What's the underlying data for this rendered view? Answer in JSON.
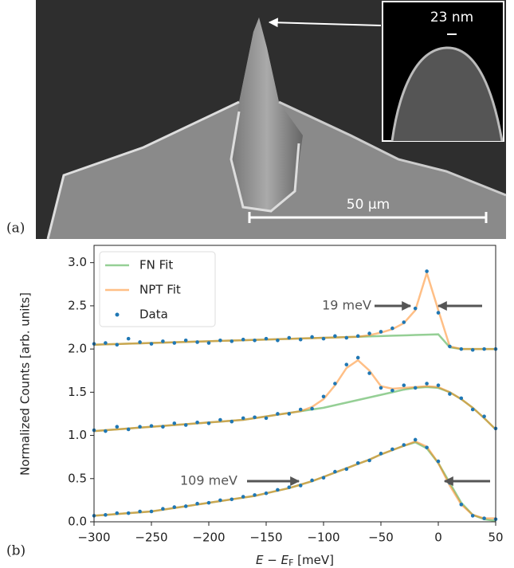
{
  "image": {
    "label": "(a)",
    "scale_bar": "50 μm",
    "inset_scale_bar": "23 nm"
  },
  "chart_data": {
    "type": "scatter-line",
    "label": "(b)",
    "xlabel": [
      "E",
      " − ",
      "E",
      "F",
      " [meV]"
    ],
    "ylabel": "Normalized Counts [arb. units]",
    "xlim": [
      -300,
      50
    ],
    "ylim": [
      0,
      3.2
    ],
    "xticks": [
      {
        "value": -300,
        "label": "−300"
      },
      {
        "value": -250,
        "label": "−250"
      },
      {
        "value": -200,
        "label": "−200"
      },
      {
        "value": -150,
        "label": "−150"
      },
      {
        "value": -100,
        "label": "−100"
      },
      {
        "value": -50,
        "label": "−50"
      },
      0,
      50
    ],
    "yticks": [
      {
        "value": 0,
        "label": "0.0"
      },
      0.5,
      {
        "value": 1,
        "label": "1.0"
      },
      1.5,
      {
        "value": 2,
        "label": "2.0"
      },
      2.5,
      {
        "value": 3,
        "label": "3.0"
      }
    ],
    "legend": "upper left",
    "annotations": [
      "19 meV",
      "109 meV"
    ],
    "x": [
      -300,
      -290,
      -280,
      -270,
      -260,
      -250,
      -240,
      -230,
      -220,
      -210,
      -200,
      -190,
      -180,
      -170,
      -160,
      -150,
      -140,
      -130,
      -120,
      -110,
      -100,
      -90,
      -80,
      -70,
      -60,
      -50,
      -40,
      -30,
      -20,
      -10,
      0,
      10,
      20,
      30,
      40,
      50
    ],
    "series": [
      {
        "name": "FN Fit",
        "color": "#2ca02c",
        "style": "line",
        "values": [
          [
            2.05,
            2.054,
            2.058,
            2.062,
            2.066,
            2.07,
            2.074,
            2.078,
            2.082,
            2.086,
            2.09,
            2.094,
            2.098,
            2.102,
            2.106,
            2.11,
            2.114,
            2.118,
            2.122,
            2.126,
            2.13,
            2.134,
            2.138,
            2.142,
            2.146,
            2.15,
            2.154,
            2.158,
            2.162,
            2.166,
            2.17,
            2.02,
            2.0,
            2.0,
            2.0,
            2.0
          ],
          [
            1.05,
            1.06,
            1.07,
            1.08,
            1.09,
            1.1,
            1.11,
            1.12,
            1.13,
            1.14,
            1.15,
            1.16,
            1.17,
            1.18,
            1.2,
            1.22,
            1.24,
            1.26,
            1.28,
            1.3,
            1.32,
            1.35,
            1.38,
            1.41,
            1.44,
            1.47,
            1.5,
            1.53,
            1.55,
            1.56,
            1.55,
            1.5,
            1.42,
            1.32,
            1.2,
            1.07
          ],
          [
            0.07,
            0.08,
            0.09,
            0.1,
            0.11,
            0.12,
            0.14,
            0.16,
            0.18,
            0.2,
            0.22,
            0.24,
            0.26,
            0.28,
            0.3,
            0.33,
            0.36,
            0.39,
            0.43,
            0.47,
            0.52,
            0.57,
            0.62,
            0.67,
            0.72,
            0.78,
            0.83,
            0.88,
            0.92,
            0.85,
            0.68,
            0.45,
            0.22,
            0.08,
            0.03,
            0.01
          ]
        ]
      },
      {
        "name": "NPT Fit",
        "color": "#ff7f0e",
        "style": "line",
        "values": [
          [
            2.05,
            2.054,
            2.058,
            2.062,
            2.066,
            2.07,
            2.074,
            2.078,
            2.082,
            2.086,
            2.09,
            2.094,
            2.098,
            2.102,
            2.106,
            2.11,
            2.114,
            2.118,
            2.122,
            2.126,
            2.13,
            2.134,
            2.138,
            2.142,
            2.16,
            2.19,
            2.23,
            2.3,
            2.45,
            2.88,
            2.45,
            2.03,
            2.0,
            2.0,
            2.0,
            2.0
          ],
          [
            1.05,
            1.06,
            1.07,
            1.08,
            1.09,
            1.1,
            1.11,
            1.12,
            1.13,
            1.14,
            1.15,
            1.16,
            1.17,
            1.18,
            1.2,
            1.22,
            1.24,
            1.26,
            1.28,
            1.33,
            1.42,
            1.58,
            1.78,
            1.87,
            1.75,
            1.57,
            1.54,
            1.55,
            1.56,
            1.57,
            1.56,
            1.5,
            1.42,
            1.32,
            1.2,
            1.07
          ],
          [
            0.07,
            0.08,
            0.09,
            0.1,
            0.11,
            0.12,
            0.14,
            0.16,
            0.18,
            0.2,
            0.22,
            0.24,
            0.26,
            0.28,
            0.3,
            0.33,
            0.36,
            0.39,
            0.43,
            0.47,
            0.52,
            0.57,
            0.62,
            0.67,
            0.72,
            0.78,
            0.83,
            0.88,
            0.93,
            0.87,
            0.68,
            0.42,
            0.2,
            0.08,
            0.04,
            0.04
          ]
        ]
      },
      {
        "name": "Data",
        "color": "#1f77b4",
        "style": "dots",
        "values": [
          [
            2.06,
            2.07,
            2.05,
            2.12,
            2.08,
            2.06,
            2.09,
            2.07,
            2.1,
            2.08,
            2.07,
            2.1,
            2.09,
            2.11,
            2.1,
            2.12,
            2.1,
            2.13,
            2.11,
            2.14,
            2.12,
            2.15,
            2.13,
            2.15,
            2.18,
            2.2,
            2.24,
            2.31,
            2.47,
            2.9,
            2.42,
            2.03,
            2.0,
            1.99,
            2.0,
            2.0
          ],
          [
            1.06,
            1.05,
            1.1,
            1.07,
            1.1,
            1.11,
            1.1,
            1.14,
            1.12,
            1.15,
            1.14,
            1.18,
            1.16,
            1.2,
            1.21,
            1.2,
            1.25,
            1.25,
            1.3,
            1.31,
            1.45,
            1.6,
            1.82,
            1.9,
            1.72,
            1.55,
            1.52,
            1.58,
            1.55,
            1.6,
            1.58,
            1.48,
            1.43,
            1.3,
            1.22,
            1.08
          ],
          [
            0.07,
            0.08,
            0.1,
            0.1,
            0.12,
            0.12,
            0.15,
            0.17,
            0.18,
            0.21,
            0.22,
            0.25,
            0.26,
            0.29,
            0.31,
            0.33,
            0.37,
            0.4,
            0.42,
            0.48,
            0.51,
            0.58,
            0.61,
            0.68,
            0.71,
            0.79,
            0.84,
            0.89,
            0.95,
            0.86,
            0.7,
            0.45,
            0.2,
            0.07,
            0.04,
            0.03
          ]
        ]
      }
    ]
  }
}
